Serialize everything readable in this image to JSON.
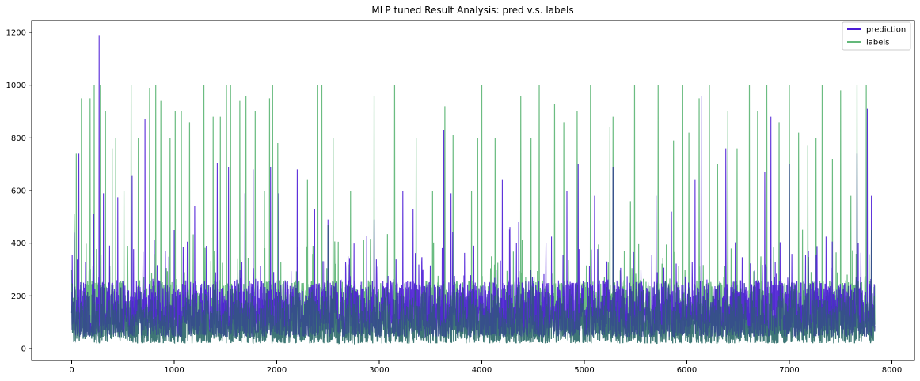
{
  "chart_data": {
    "type": "line",
    "title": "MLP tuned Result Analysis: pred v.s. labels",
    "xlabel": "",
    "ylabel": "",
    "xlim": [
      -390,
      8220
    ],
    "ylim": [
      -45,
      1245
    ],
    "x_ticks": [
      0,
      1000,
      2000,
      3000,
      4000,
      5000,
      6000,
      7000,
      8000
    ],
    "y_ticks": [
      0,
      200,
      400,
      600,
      800,
      1000,
      1200
    ],
    "grid": false,
    "legend_position": "top-right",
    "n_points": 7836,
    "series": [
      {
        "name": "prediction",
        "color": "#4b1bd6",
        "baseline_range": [
          45,
          260
        ],
        "peaks": [
          {
            "x": 5,
            "y": 355
          },
          {
            "x": 25,
            "y": 440
          },
          {
            "x": 70,
            "y": 740
          },
          {
            "x": 135,
            "y": 330
          },
          {
            "x": 215,
            "y": 510
          },
          {
            "x": 268,
            "y": 1190
          },
          {
            "x": 310,
            "y": 590
          },
          {
            "x": 450,
            "y": 575
          },
          {
            "x": 590,
            "y": 655
          },
          {
            "x": 715,
            "y": 870
          },
          {
            "x": 1000,
            "y": 450
          },
          {
            "x": 1200,
            "y": 540
          },
          {
            "x": 1420,
            "y": 705
          },
          {
            "x": 1530,
            "y": 690
          },
          {
            "x": 1690,
            "y": 590
          },
          {
            "x": 1770,
            "y": 680
          },
          {
            "x": 1940,
            "y": 690
          },
          {
            "x": 2020,
            "y": 590
          },
          {
            "x": 2200,
            "y": 680
          },
          {
            "x": 2370,
            "y": 530
          },
          {
            "x": 2500,
            "y": 490
          },
          {
            "x": 2950,
            "y": 490
          },
          {
            "x": 3230,
            "y": 600
          },
          {
            "x": 3330,
            "y": 530
          },
          {
            "x": 3630,
            "y": 830
          },
          {
            "x": 3700,
            "y": 590
          },
          {
            "x": 4200,
            "y": 640
          },
          {
            "x": 4360,
            "y": 480
          },
          {
            "x": 4830,
            "y": 600
          },
          {
            "x": 4940,
            "y": 700
          },
          {
            "x": 5100,
            "y": 580
          },
          {
            "x": 5280,
            "y": 690
          },
          {
            "x": 5700,
            "y": 580
          },
          {
            "x": 5850,
            "y": 520
          },
          {
            "x": 6080,
            "y": 640
          },
          {
            "x": 6140,
            "y": 960
          },
          {
            "x": 6380,
            "y": 760
          },
          {
            "x": 6760,
            "y": 670
          },
          {
            "x": 6820,
            "y": 880
          },
          {
            "x": 7000,
            "y": 700
          },
          {
            "x": 7660,
            "y": 740
          },
          {
            "x": 7760,
            "y": 910
          },
          {
            "x": 7800,
            "y": 580
          }
        ]
      },
      {
        "name": "labels",
        "color": "#63b87a",
        "baseline_range": [
          20,
          260
        ],
        "peaks": [
          {
            "x": 25,
            "y": 510
          },
          {
            "x": 45,
            "y": 740
          },
          {
            "x": 95,
            "y": 950
          },
          {
            "x": 180,
            "y": 950
          },
          {
            "x": 220,
            "y": 1000
          },
          {
            "x": 280,
            "y": 1000
          },
          {
            "x": 330,
            "y": 900
          },
          {
            "x": 395,
            "y": 760
          },
          {
            "x": 430,
            "y": 800
          },
          {
            "x": 510,
            "y": 600
          },
          {
            "x": 580,
            "y": 1000
          },
          {
            "x": 650,
            "y": 800
          },
          {
            "x": 760,
            "y": 990
          },
          {
            "x": 820,
            "y": 1000
          },
          {
            "x": 870,
            "y": 940
          },
          {
            "x": 960,
            "y": 800
          },
          {
            "x": 1010,
            "y": 900
          },
          {
            "x": 1070,
            "y": 900
          },
          {
            "x": 1150,
            "y": 860
          },
          {
            "x": 1290,
            "y": 1000
          },
          {
            "x": 1380,
            "y": 880
          },
          {
            "x": 1450,
            "y": 880
          },
          {
            "x": 1510,
            "y": 1000
          },
          {
            "x": 1550,
            "y": 1000
          },
          {
            "x": 1640,
            "y": 940
          },
          {
            "x": 1700,
            "y": 960
          },
          {
            "x": 1790,
            "y": 900
          },
          {
            "x": 1880,
            "y": 600
          },
          {
            "x": 1930,
            "y": 950
          },
          {
            "x": 1960,
            "y": 1000
          },
          {
            "x": 2010,
            "y": 780
          },
          {
            "x": 2300,
            "y": 640
          },
          {
            "x": 2400,
            "y": 1000
          },
          {
            "x": 2440,
            "y": 1000
          },
          {
            "x": 2550,
            "y": 800
          },
          {
            "x": 2720,
            "y": 600
          },
          {
            "x": 2950,
            "y": 960
          },
          {
            "x": 3150,
            "y": 1000
          },
          {
            "x": 3360,
            "y": 800
          },
          {
            "x": 3520,
            "y": 600
          },
          {
            "x": 3640,
            "y": 920
          },
          {
            "x": 3720,
            "y": 810
          },
          {
            "x": 3900,
            "y": 600
          },
          {
            "x": 3960,
            "y": 800
          },
          {
            "x": 4000,
            "y": 1000
          },
          {
            "x": 4130,
            "y": 800
          },
          {
            "x": 4380,
            "y": 960
          },
          {
            "x": 4480,
            "y": 800
          },
          {
            "x": 4560,
            "y": 1000
          },
          {
            "x": 4710,
            "y": 930
          },
          {
            "x": 4800,
            "y": 860
          },
          {
            "x": 4930,
            "y": 900
          },
          {
            "x": 5060,
            "y": 1000
          },
          {
            "x": 5250,
            "y": 840
          },
          {
            "x": 5280,
            "y": 880
          },
          {
            "x": 5450,
            "y": 560
          },
          {
            "x": 5490,
            "y": 1000
          },
          {
            "x": 5720,
            "y": 1000
          },
          {
            "x": 5870,
            "y": 790
          },
          {
            "x": 5960,
            "y": 1000
          },
          {
            "x": 6020,
            "y": 820
          },
          {
            "x": 6120,
            "y": 950
          },
          {
            "x": 6220,
            "y": 1000
          },
          {
            "x": 6300,
            "y": 700
          },
          {
            "x": 6400,
            "y": 900
          },
          {
            "x": 6490,
            "y": 760
          },
          {
            "x": 6610,
            "y": 1000
          },
          {
            "x": 6690,
            "y": 900
          },
          {
            "x": 6780,
            "y": 1000
          },
          {
            "x": 6900,
            "y": 860
          },
          {
            "x": 7000,
            "y": 1000
          },
          {
            "x": 7090,
            "y": 820
          },
          {
            "x": 7180,
            "y": 770
          },
          {
            "x": 7260,
            "y": 800
          },
          {
            "x": 7320,
            "y": 1000
          },
          {
            "x": 7420,
            "y": 720
          },
          {
            "x": 7500,
            "y": 980
          },
          {
            "x": 7600,
            "y": 580
          },
          {
            "x": 7660,
            "y": 1000
          },
          {
            "x": 7750,
            "y": 1000
          },
          {
            "x": 7800,
            "y": 450
          }
        ]
      }
    ],
    "overlap_color": "#2f5e73"
  }
}
